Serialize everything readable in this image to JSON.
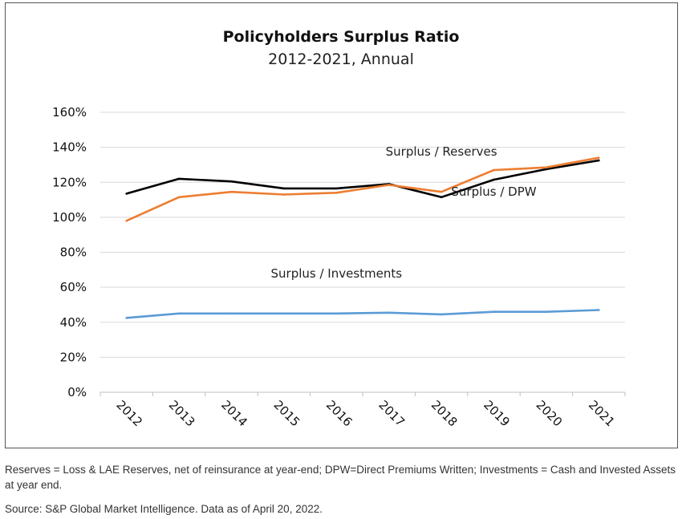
{
  "chart_data": {
    "type": "line",
    "title": "Policyholders Surplus Ratio",
    "subtitle": "2012-2021, Annual",
    "xlabel": "",
    "ylabel": "",
    "ylim": [
      0,
      160
    ],
    "y_ticks": [
      0,
      20,
      40,
      60,
      80,
      100,
      120,
      140,
      160
    ],
    "y_tick_labels": [
      "0%",
      "20%",
      "40%",
      "60%",
      "80%",
      "100%",
      "120%",
      "140%",
      "160%"
    ],
    "grid": "horizontal",
    "categories": [
      "2012",
      "2013",
      "2014",
      "2015",
      "2016",
      "2017",
      "2018",
      "2019",
      "2020",
      "2021"
    ],
    "series": [
      {
        "name": "Surplus / DPW",
        "color": "#000000",
        "values": [
          113.5,
          122,
          120.5,
          116.5,
          116.5,
          119,
          111.5,
          121.5,
          127.5,
          132.5
        ]
      },
      {
        "name": "Surplus / Reserves",
        "color": "#ed7d31",
        "values": [
          98,
          111.5,
          114.5,
          113,
          114,
          118.5,
          114.5,
          127,
          128.5,
          134
        ]
      },
      {
        "name": "Surplus / Investments",
        "color": "#5b9bd5",
        "values": [
          42.5,
          45,
          45,
          45,
          45,
          45.5,
          44.5,
          46,
          46,
          47
        ]
      }
    ],
    "series_label_anchor": [
      {
        "series": 1,
        "category": "2018",
        "position": "above"
      },
      {
        "series": 0,
        "category": "2019",
        "position": "below"
      },
      {
        "series": 2,
        "category": "2016",
        "position": "above"
      }
    ]
  },
  "footnotes": {
    "definitions": "Reserves = Loss & LAE Reserves, net of reinsurance at year-end; DPW=Direct Premiums Written; Investments = Cash and Invested Assets at year end.",
    "source": "Source: S&P Global Market Intelligence. Data as of April 20, 2022."
  }
}
